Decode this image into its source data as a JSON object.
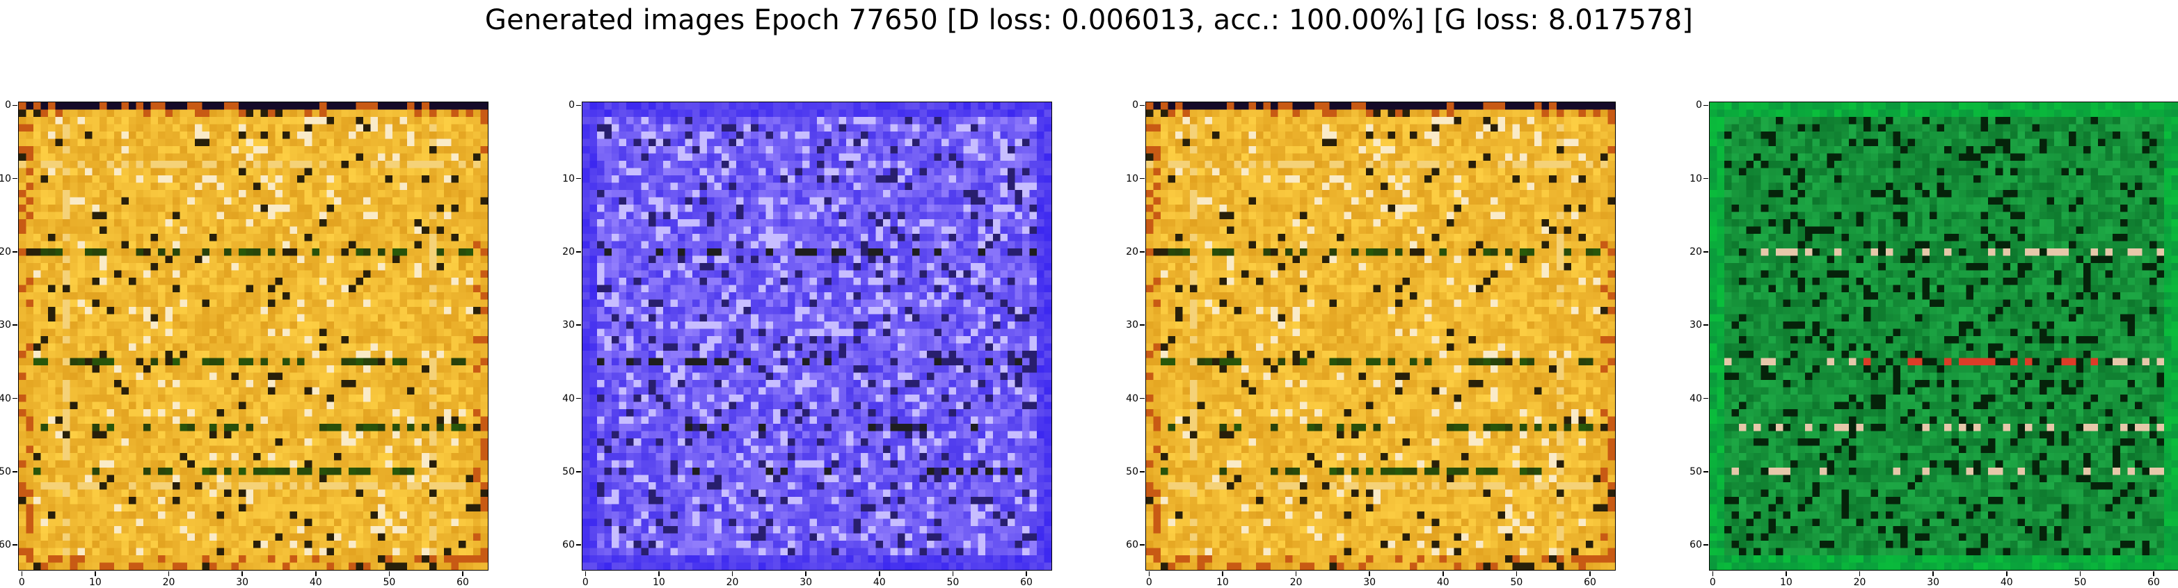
{
  "figure": {
    "title": "Generated images Epoch 77650 [D loss: 0.006013, acc.: 100.00%] [G loss: 8.017578]"
  },
  "axes": {
    "y_ticks": [
      "0",
      "10",
      "20",
      "30",
      "40",
      "50",
      "60"
    ],
    "x_ticks": [
      "0",
      "10",
      "20",
      "30",
      "40",
      "50",
      "60"
    ],
    "pixel_range": [
      0,
      63
    ]
  },
  "panels": [
    {
      "palette": "gold",
      "base_color": "#e0a020"
    },
    {
      "palette": "blue",
      "base_color": "#4a3cf0"
    },
    {
      "palette": "gold",
      "base_color": "#e0a020"
    },
    {
      "palette": "green",
      "base_color": "#0a8a2a"
    }
  ]
}
